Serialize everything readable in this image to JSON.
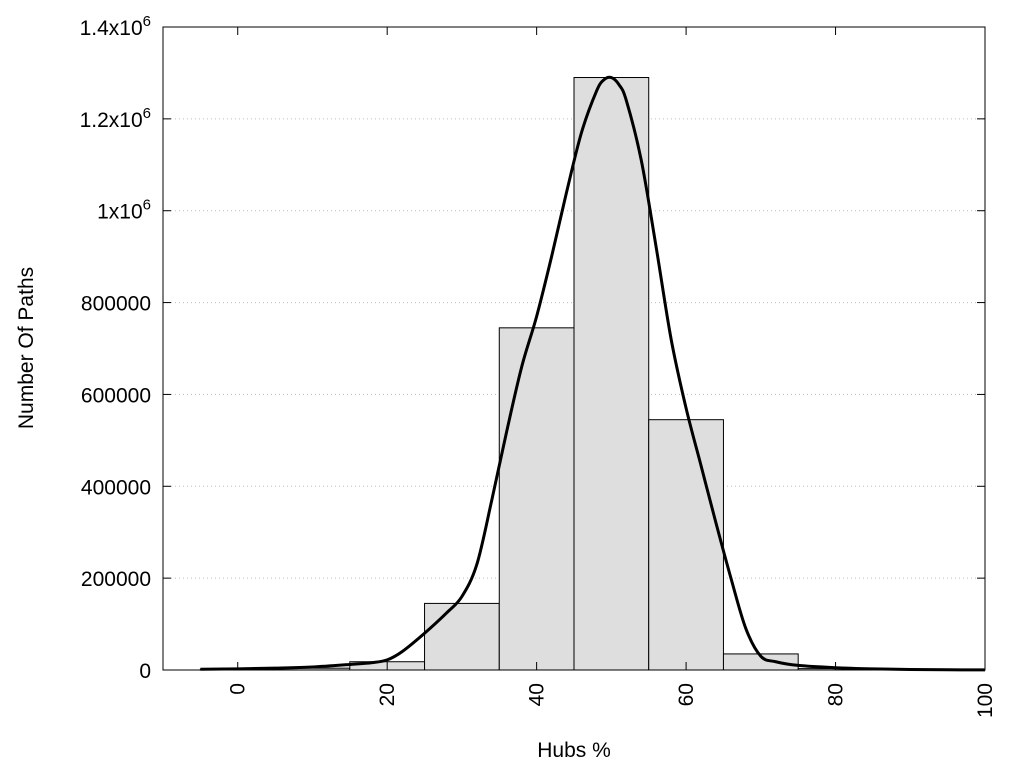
{
  "chart_data": {
    "type": "bar",
    "xlabel": "Hubs %",
    "ylabel": "Number Of Paths",
    "xlim": [
      -10,
      100
    ],
    "ylim": [
      0,
      1400000
    ],
    "grid": true,
    "x_ticks": [
      {
        "value": 0,
        "label": "0"
      },
      {
        "value": 20,
        "label": "20"
      },
      {
        "value": 40,
        "label": "40"
      },
      {
        "value": 60,
        "label": "60"
      },
      {
        "value": 80,
        "label": "80"
      },
      {
        "value": 100,
        "label": "100"
      }
    ],
    "y_ticks": [
      {
        "value": 0,
        "base": "0",
        "exp": ""
      },
      {
        "value": 200000,
        "base": "200000",
        "exp": ""
      },
      {
        "value": 400000,
        "base": "400000",
        "exp": ""
      },
      {
        "value": 600000,
        "base": "600000",
        "exp": ""
      },
      {
        "value": 800000,
        "base": "800000",
        "exp": ""
      },
      {
        "value": 1000000,
        "base": "1x10",
        "exp": "6"
      },
      {
        "value": 1200000,
        "base": "1.2x10",
        "exp": "6"
      },
      {
        "value": 1400000,
        "base": "1.4x10",
        "exp": "6"
      }
    ],
    "bins": [
      {
        "start": -5,
        "end": 5,
        "value": 1500
      },
      {
        "start": 5,
        "end": 15,
        "value": 4000
      },
      {
        "start": 15,
        "end": 25,
        "value": 18000
      },
      {
        "start": 25,
        "end": 35,
        "value": 145000
      },
      {
        "start": 35,
        "end": 45,
        "value": 745000
      },
      {
        "start": 45,
        "end": 55,
        "value": 1290000
      },
      {
        "start": 55,
        "end": 65,
        "value": 545000
      },
      {
        "start": 65,
        "end": 75,
        "value": 35000
      },
      {
        "start": 75,
        "end": 85,
        "value": 3000
      },
      {
        "start": 85,
        "end": 95,
        "value": 800
      }
    ],
    "curve": {
      "x": [
        -5,
        0,
        5,
        10,
        15,
        18,
        20,
        22,
        25,
        28,
        30,
        32,
        34,
        36,
        38,
        40,
        42,
        44,
        46,
        48,
        49,
        50,
        51,
        52,
        54,
        56,
        58,
        60,
        62,
        64,
        66,
        68,
        70,
        72,
        75,
        80,
        85,
        90,
        95,
        100
      ],
      "y": [
        1500,
        2500,
        4000,
        6500,
        12000,
        16000,
        22000,
        40000,
        80000,
        125000,
        160000,
        230000,
        370000,
        520000,
        660000,
        770000,
        900000,
        1040000,
        1170000,
        1260000,
        1285000,
        1290000,
        1275000,
        1240000,
        1110000,
        920000,
        720000,
        570000,
        445000,
        320000,
        200000,
        90000,
        30000,
        18000,
        10000,
        5000,
        2500,
        1200,
        500,
        200
      ]
    },
    "colors": {
      "bar_fill": "#dedede",
      "bar_stroke": "#000000",
      "curve": "#000000",
      "grid": "#bdbdbd"
    }
  }
}
